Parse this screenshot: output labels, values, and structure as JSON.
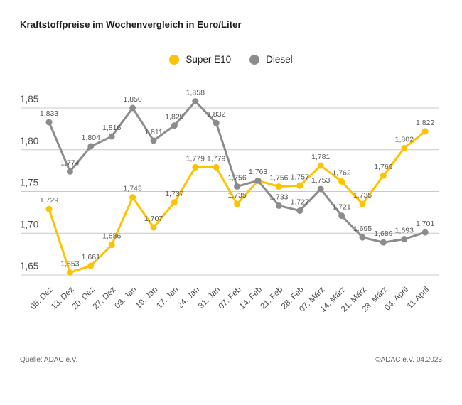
{
  "title": "Kraftstoffpreise im Wochenvergleich in Euro/Liter",
  "legend": {
    "items": [
      {
        "label": "Super E10",
        "color": "#FDC300"
      },
      {
        "label": "Diesel",
        "color": "#8C8C8C"
      }
    ]
  },
  "footer": {
    "source": "Quelle: ADAC e.V.",
    "copyright": "©ADAC e.V. 04.2023"
  },
  "chart_data": {
    "type": "line",
    "title": "Kraftstoffpreise im Wochenvergleich in Euro/Liter",
    "unit": "Euro/Liter",
    "categories": [
      "06. Dez",
      "13. Dez",
      "20. Dez",
      "27. Dez",
      "03. Jan",
      "10. Jan",
      "17. Jan",
      "24. Jan",
      "31. Jan",
      "07. Feb",
      "14. Feb",
      "21. Feb",
      "28. Feb",
      "07. März",
      "14. März",
      "21. März",
      "28. März",
      "04. April",
      "11.April"
    ],
    "series": [
      {
        "name": "Super E10",
        "color": "#FDC300",
        "values": [
          1.729,
          1.653,
          1.661,
          1.686,
          1.743,
          1.707,
          1.737,
          1.779,
          1.779,
          1.735,
          1.763,
          1.756,
          1.757,
          1.781,
          1.762,
          1.735,
          1.769,
          1.802,
          1.822
        ],
        "hidden_point_indices": [
          10
        ]
      },
      {
        "name": "Diesel",
        "color": "#8C8C8C",
        "values": [
          1.833,
          1.774,
          1.804,
          1.816,
          1.85,
          1.811,
          1.829,
          1.858,
          1.832,
          1.756,
          1.763,
          1.733,
          1.727,
          1.753,
          1.721,
          1.695,
          1.689,
          1.693,
          1.701
        ],
        "hidden_point_indices": []
      }
    ],
    "ylim": [
      1.65,
      1.85
    ],
    "yticks": [
      1.85,
      1.8,
      1.75,
      1.7,
      1.65
    ],
    "decimal_separator": ",",
    "grid": true,
    "legend_position": "top",
    "colors": {
      "gridline": "#C9C9C9",
      "axis_text": "#4A4A4A",
      "value_label": "#575756"
    }
  }
}
